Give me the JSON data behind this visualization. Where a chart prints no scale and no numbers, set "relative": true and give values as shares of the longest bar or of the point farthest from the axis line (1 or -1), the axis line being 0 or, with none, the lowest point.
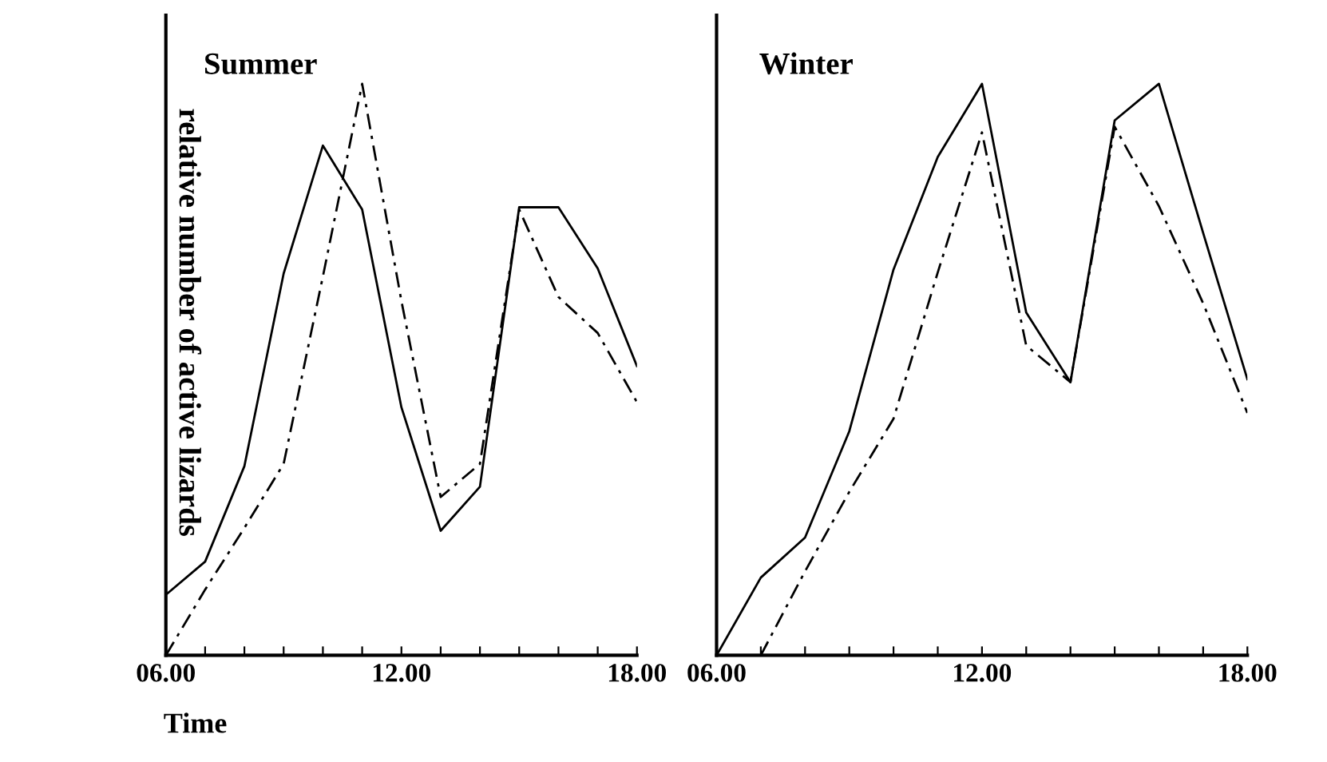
{
  "chart_data": [
    {
      "type": "line",
      "title": "Summer",
      "xlabel": "Time",
      "ylabel": "relative number of active lizards",
      "relative": true,
      "tick_labels": "x",
      "grid": false,
      "marker": "none",
      "x": [
        6,
        7,
        8,
        9,
        10,
        11,
        12,
        13,
        14,
        15,
        16,
        17,
        18
      ],
      "xlim": [
        6,
        18
      ],
      "xticks": [
        {
          "value": 6,
          "label": "06.00"
        },
        {
          "value": 7,
          "label": null
        },
        {
          "value": 8,
          "label": null
        },
        {
          "value": 9,
          "label": null
        },
        {
          "value": 10,
          "label": null
        },
        {
          "value": 11,
          "label": null
        },
        {
          "value": 12,
          "label": "12.00"
        },
        {
          "value": 13,
          "label": null
        },
        {
          "value": 14,
          "label": null
        },
        {
          "value": 15,
          "label": null
        },
        {
          "value": 16,
          "label": null
        },
        {
          "value": 17,
          "label": null
        },
        {
          "value": 18,
          "label": "18.00"
        }
      ],
      "series": [
        {
          "color": "#000000",
          "line_style": "solid",
          "values": [
            0.106,
            0.164,
            0.331,
            0.668,
            0.892,
            0.78,
            0.434,
            0.218,
            0.295,
            0.784,
            0.784,
            0.677,
            0.506
          ]
        },
        {
          "color": "#000000",
          "line_style": "dashed",
          "values": [
            0,
            0.115,
            0.223,
            0.335,
            0.663,
            1,
            0.62,
            0.277,
            0.335,
            0.78,
            0.627,
            0.564,
            0.443
          ]
        }
      ]
    },
    {
      "type": "line",
      "title": "Winter",
      "relative": true,
      "tick_labels": "x",
      "grid": false,
      "marker": "none",
      "x": [
        6,
        7,
        8,
        9,
        10,
        11,
        12,
        13,
        14,
        15,
        16,
        17,
        18
      ],
      "xlim": [
        6,
        18
      ],
      "xticks": [
        {
          "value": 6,
          "label": "06.00"
        },
        {
          "value": 7,
          "label": null
        },
        {
          "value": 8,
          "label": null
        },
        {
          "value": 9,
          "label": null
        },
        {
          "value": 10,
          "label": null
        },
        {
          "value": 11,
          "label": null
        },
        {
          "value": 12,
          "label": "12.00"
        },
        {
          "value": 13,
          "label": null
        },
        {
          "value": 14,
          "label": null
        },
        {
          "value": 15,
          "label": null
        },
        {
          "value": 16,
          "label": null
        },
        {
          "value": 17,
          "label": null
        },
        {
          "value": 18,
          "label": "18.00"
        }
      ],
      "series": [
        {
          "color": "#000000",
          "line_style": "solid",
          "values": [
            0,
            0.136,
            0.206,
            0.392,
            0.675,
            0.872,
            1,
            0.6,
            0.478,
            0.936,
            1,
            0.739,
            0.483
          ]
        },
        {
          "color": "#000000",
          "line_style": "dashed",
          "values": [
            null,
            0,
            0.147,
            0.286,
            0.414,
            0.67,
            0.915,
            0.542,
            0.478,
            0.925,
            0.786,
            0.616,
            0.424
          ]
        }
      ]
    }
  ]
}
